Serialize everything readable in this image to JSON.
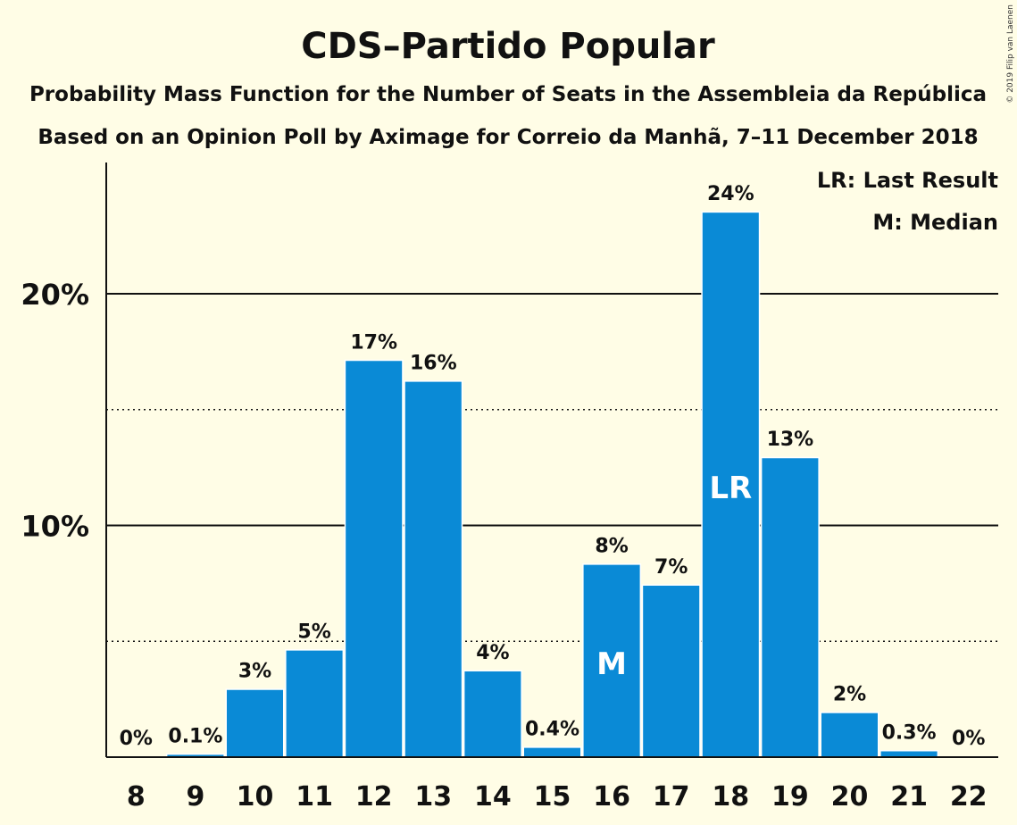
{
  "chart_data": {
    "type": "bar",
    "title": "CDS–Partido Popular",
    "subtitle_lines": [
      "Probability Mass Function for the Number of Seats in the Assembleia da República",
      "Based on an Opinion Poll by Aximage for Correio da Manhã, 7–11 December 2018"
    ],
    "copyright": "© 2019 Filip van Laenen",
    "legend": {
      "placement": "top-right",
      "entries": [
        "LR: Last Result",
        "M: Median"
      ]
    },
    "categories": [
      "8",
      "9",
      "10",
      "11",
      "12",
      "13",
      "14",
      "15",
      "16",
      "17",
      "18",
      "19",
      "20",
      "21",
      "22"
    ],
    "values": [
      0,
      0.1,
      2.9,
      4.6,
      17.1,
      16.2,
      3.7,
      0.4,
      8.3,
      7.4,
      23.5,
      12.9,
      1.9,
      0.25,
      0
    ],
    "data_labels": [
      "0%",
      "0.1%",
      "3%",
      "5%",
      "17%",
      "16%",
      "4%",
      "0.4%",
      "8%",
      "7%",
      "24%",
      "13%",
      "2%",
      "0.3%",
      "0%"
    ],
    "markers": [
      {
        "category": "16",
        "label": "M"
      },
      {
        "category": "18",
        "label": "LR"
      }
    ],
    "ylim": [
      0,
      25.5
    ],
    "yticks": [
      {
        "value": 10,
        "label": "10%"
      },
      {
        "value": 20,
        "label": "20%"
      }
    ],
    "minor_gridlines": [
      5,
      15
    ],
    "grid": true,
    "xlabel": "",
    "ylabel": "",
    "colors": {
      "bar": "#0A8AD6",
      "background": "#FFFDE6",
      "grid": "#111111",
      "text": "#111111"
    }
  }
}
